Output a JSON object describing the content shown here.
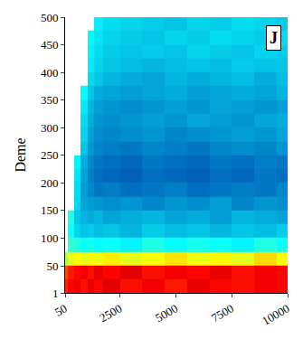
{
  "chart_data": {
    "type": "heatmap",
    "annotation": "J",
    "y_label": "Deme",
    "color": "Jet",
    "zlim": [
      0,
      1
    ],
    "x": [
      50,
      300,
      600,
      900,
      1200,
      1500,
      2000,
      3000,
      4000,
      5000,
      6000,
      7000,
      8000,
      9000,
      10000
    ],
    "y": [
      13,
      38,
      63,
      88,
      113,
      138,
      163,
      188,
      213,
      238,
      263,
      288,
      313,
      338,
      363,
      388,
      413,
      438,
      463,
      488
    ],
    "cells": [
      [
        0.84,
        0.87,
        0.88,
        0.86,
        0.89,
        0.87,
        0.9,
        0.86,
        0.88,
        0.85,
        0.89,
        0.87,
        0.86,
        0.88,
        0.87
      ],
      [
        0.8,
        0.85,
        0.87,
        0.88,
        0.86,
        0.89,
        0.87,
        0.9,
        0.86,
        0.88,
        0.87,
        0.89,
        0.86,
        0.88,
        0.87
      ],
      [
        0.55,
        0.6,
        0.62,
        0.6,
        0.63,
        0.61,
        0.64,
        0.6,
        0.62,
        0.65,
        0.61,
        0.63,
        0.6,
        0.66,
        0.62
      ],
      [
        null,
        0.42,
        0.4,
        0.38,
        0.39,
        0.37,
        0.38,
        0.36,
        0.4,
        0.37,
        0.39,
        0.38,
        0.36,
        0.4,
        0.38
      ],
      [
        null,
        0.38,
        0.32,
        0.3,
        0.31,
        0.29,
        0.3,
        0.28,
        0.31,
        0.29,
        0.3,
        0.28,
        0.3,
        0.29,
        0.31
      ],
      [
        null,
        0.4,
        0.3,
        0.28,
        0.27,
        0.28,
        0.26,
        0.27,
        0.28,
        0.26,
        0.27,
        0.25,
        0.28,
        0.27,
        0.26
      ],
      [
        null,
        null,
        0.32,
        0.26,
        0.25,
        0.24,
        0.23,
        0.24,
        0.22,
        0.24,
        0.23,
        0.25,
        0.22,
        0.24,
        0.23
      ],
      [
        null,
        null,
        0.33,
        0.25,
        0.22,
        0.2,
        0.21,
        0.19,
        0.2,
        0.21,
        0.19,
        0.2,
        0.21,
        0.2,
        0.22
      ],
      [
        null,
        null,
        0.34,
        0.26,
        0.21,
        0.19,
        0.18,
        0.17,
        0.19,
        0.18,
        0.17,
        0.19,
        0.18,
        0.2,
        0.19
      ],
      [
        null,
        null,
        0.36,
        0.27,
        0.22,
        0.2,
        0.19,
        0.18,
        0.2,
        0.19,
        0.18,
        0.2,
        0.19,
        0.21,
        0.2
      ],
      [
        null,
        null,
        null,
        0.3,
        0.24,
        0.22,
        0.21,
        0.2,
        0.22,
        0.21,
        0.2,
        0.22,
        0.23,
        0.22,
        0.24
      ],
      [
        null,
        null,
        null,
        0.32,
        0.25,
        0.23,
        0.22,
        0.23,
        0.24,
        0.22,
        0.23,
        0.24,
        0.25,
        0.24,
        0.26
      ],
      [
        null,
        null,
        null,
        0.33,
        0.27,
        0.24,
        0.23,
        0.24,
        0.25,
        0.24,
        0.26,
        0.25,
        0.24,
        0.26,
        0.27
      ],
      [
        null,
        null,
        null,
        0.35,
        0.28,
        0.25,
        0.24,
        0.23,
        0.24,
        0.25,
        0.24,
        0.26,
        0.25,
        0.24,
        0.25
      ],
      [
        null,
        null,
        null,
        0.37,
        0.3,
        0.27,
        0.26,
        0.25,
        0.26,
        0.27,
        0.25,
        0.26,
        0.27,
        0.26,
        0.28
      ],
      [
        null,
        null,
        null,
        null,
        0.33,
        0.3,
        0.28,
        0.27,
        0.26,
        0.28,
        0.27,
        0.28,
        0.29,
        0.27,
        0.29
      ],
      [
        null,
        null,
        null,
        null,
        0.35,
        0.32,
        0.3,
        0.29,
        0.28,
        0.29,
        0.3,
        0.29,
        0.31,
        0.3,
        0.3
      ],
      [
        null,
        null,
        null,
        null,
        0.36,
        0.33,
        0.31,
        0.3,
        0.31,
        0.3,
        0.32,
        0.31,
        0.3,
        0.32,
        0.31
      ],
      [
        null,
        null,
        null,
        null,
        0.37,
        0.34,
        0.32,
        0.31,
        0.3,
        0.32,
        0.31,
        0.33,
        0.32,
        0.31,
        0.33
      ],
      [
        null,
        null,
        null,
        null,
        null,
        0.35,
        0.33,
        0.32,
        0.31,
        0.3,
        0.32,
        0.31,
        0.33,
        0.32,
        0.31
      ]
    ],
    "xlim": [
      50,
      10000
    ],
    "ylim": [
      1,
      500
    ],
    "xticks": [
      50,
      2500,
      5000,
      7500,
      10000
    ],
    "yticks": [
      1,
      50,
      100,
      150,
      200,
      250,
      300,
      350,
      400,
      450,
      500
    ],
    "grid": false
  }
}
